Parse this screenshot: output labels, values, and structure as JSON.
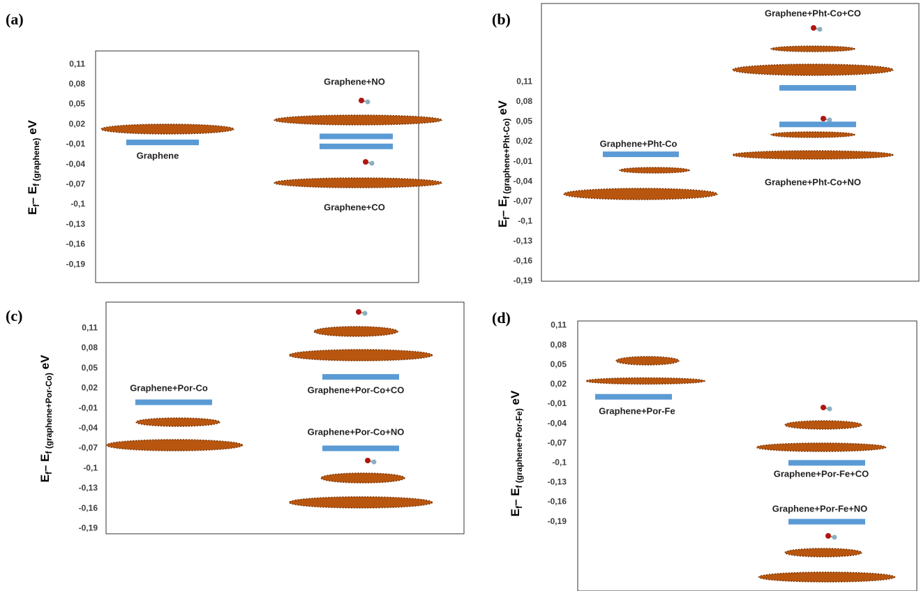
{
  "chart_data": [
    {
      "type": "level",
      "panel": "(a)",
      "ylabel": [
        {
          "text": "E",
          "sub": false
        },
        {
          "text": "f",
          "sub": true
        },
        {
          "text": "– E",
          "sub": false
        },
        {
          "text": "f (graphene)",
          "sub": true
        },
        {
          "text": " eV",
          "sub": false
        }
      ],
      "ylim": [
        -0.217,
        0.13
      ],
      "color": "#5b9bd5",
      "yticks": [
        {
          "value": 0.11,
          "label": "0,11"
        },
        {
          "value": 0.08,
          "label": "0,08"
        },
        {
          "value": 0.05,
          "label": "0,05"
        },
        {
          "value": 0.02,
          "label": "0,02"
        },
        {
          "value": -0.01,
          "label": "-0,01"
        },
        {
          "value": -0.04,
          "label": "-0,04"
        },
        {
          "value": -0.07,
          "label": "-0,07"
        },
        {
          "value": -0.1,
          "label": "-0,1"
        },
        {
          "value": -0.13,
          "label": "-0,13"
        },
        {
          "value": -0.16,
          "label": "-0,16"
        },
        {
          "value": -0.19,
          "label": "-0,19"
        }
      ],
      "levels": [
        {
          "name": "Graphene",
          "value": -0.007
        },
        {
          "name": "Graphene+NO",
          "value": 0.002
        },
        {
          "name": "Graphene+CO",
          "value": -0.013
        }
      ]
    },
    {
      "type": "level",
      "panel": "(b)",
      "ylabel": [
        {
          "text": "E",
          "sub": false
        },
        {
          "text": "f",
          "sub": true
        },
        {
          "text": "– E",
          "sub": false
        },
        {
          "text": "f (graphene+Pht-Co)",
          "sub": true
        },
        {
          "text": " eV",
          "sub": false
        }
      ],
      "ylim": [
        -0.19,
        0.228
      ],
      "color": "#5b9bd5",
      "yticks": [
        {
          "value": 0.11,
          "label": "0,11"
        },
        {
          "value": 0.08,
          "label": "0,08"
        },
        {
          "value": 0.05,
          "label": "0,05"
        },
        {
          "value": 0.02,
          "label": "0,02"
        },
        {
          "value": -0.01,
          "label": "-0,01"
        },
        {
          "value": -0.04,
          "label": "-0,04"
        },
        {
          "value": -0.07,
          "label": "-0,07"
        },
        {
          "value": -0.1,
          "label": "-0,1"
        },
        {
          "value": -0.13,
          "label": "-0,13"
        },
        {
          "value": -0.16,
          "label": "-0,16"
        },
        {
          "value": -0.19,
          "label": "-0,19"
        }
      ],
      "levels": [
        {
          "name": "Graphene+Pht-Co",
          "value": 0.001
        },
        {
          "name": "Graphene+Pht-Co+CO",
          "value": 0.101
        },
        {
          "name": "Graphene+Pht-Co+NO",
          "value": 0.046
        }
      ]
    },
    {
      "type": "level",
      "panel": "(c)",
      "ylabel": [
        {
          "text": "E",
          "sub": false
        },
        {
          "text": "f",
          "sub": true
        },
        {
          "text": "– E",
          "sub": false
        },
        {
          "text": "f (graphene+Por-Co)",
          "sub": true
        },
        {
          "text": " eV",
          "sub": false
        }
      ],
      "ylim": [
        -0.198,
        0.149
      ],
      "color": "#5b9bd5",
      "yticks": [
        {
          "value": 0.11,
          "label": "0,11"
        },
        {
          "value": 0.08,
          "label": "0,08"
        },
        {
          "value": 0.05,
          "label": "0,05"
        },
        {
          "value": 0.02,
          "label": "0,02"
        },
        {
          "value": -0.01,
          "label": "-0,01"
        },
        {
          "value": -0.04,
          "label": "-0,04"
        },
        {
          "value": -0.07,
          "label": "-0,07"
        },
        {
          "value": -0.1,
          "label": "-0,1"
        },
        {
          "value": -0.13,
          "label": "-0,13"
        },
        {
          "value": -0.16,
          "label": "-0,16"
        },
        {
          "value": -0.19,
          "label": "-0,19"
        }
      ],
      "levels": [
        {
          "name": "Graphene+Por-Co",
          "value": -0.001
        },
        {
          "name": "Graphene+Por-Co+CO",
          "value": 0.037
        },
        {
          "name": "Graphene+Por-Co+NO",
          "value": -0.07
        }
      ]
    },
    {
      "type": "level",
      "panel": "(d)",
      "ylabel": [
        {
          "text": "E",
          "sub": false
        },
        {
          "text": "f",
          "sub": true
        },
        {
          "text": "– E",
          "sub": false
        },
        {
          "text": "f (graphene+Por-Fe)",
          "sub": true
        },
        {
          "text": " eV",
          "sub": false
        }
      ],
      "ylim": [
        -0.296,
        0.117
      ],
      "color": "#5b9bd5",
      "yticks": [
        {
          "value": 0.11,
          "label": "0,11"
        },
        {
          "value": 0.08,
          "label": "0,08"
        },
        {
          "value": 0.05,
          "label": "0,05"
        },
        {
          "value": 0.02,
          "label": "0,02"
        },
        {
          "value": -0.01,
          "label": "-0,01"
        },
        {
          "value": -0.04,
          "label": "-0,04"
        },
        {
          "value": -0.07,
          "label": "-0,07"
        },
        {
          "value": -0.1,
          "label": "-0,1"
        },
        {
          "value": -0.13,
          "label": "-0,13"
        },
        {
          "value": -0.16,
          "label": "-0,16"
        },
        {
          "value": -0.19,
          "label": "-0,19"
        }
      ],
      "levels": [
        {
          "name": "Graphene+Por-Fe",
          "value": 0.001
        },
        {
          "name": "Graphene+Por-Fe+CO",
          "value": -0.1
        },
        {
          "name": "Graphene+Por-Fe+NO",
          "value": -0.19
        }
      ]
    }
  ]
}
